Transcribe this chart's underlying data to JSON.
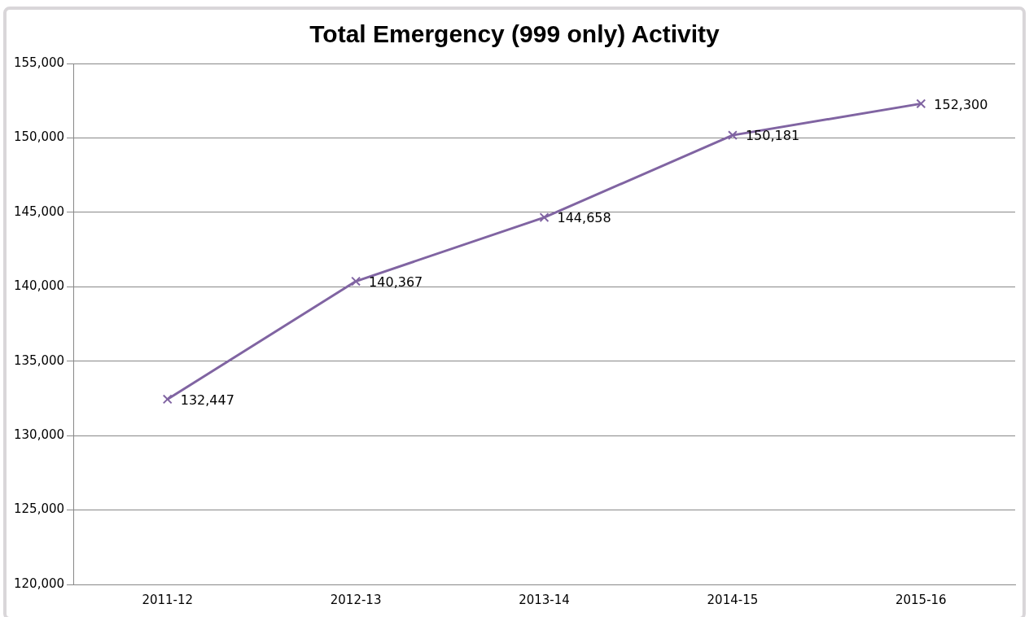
{
  "chart_data": {
    "type": "line",
    "title": "Total Emergency (999 only) Activity",
    "categories": [
      "2011-12",
      "2012-13",
      "2013-14",
      "2014-15",
      "2015-16"
    ],
    "series": [
      {
        "color": "#8064a2",
        "values": [
          132447,
          140367,
          144658,
          150181,
          152300
        ],
        "value_labels": [
          "132,447",
          "140,367",
          "144,658",
          "150,181",
          "152,300"
        ]
      }
    ],
    "ylim": [
      120000,
      155000
    ],
    "yticks": [
      {
        "value": 120000,
        "label": "120,000"
      },
      {
        "value": 125000,
        "label": "125,000"
      },
      {
        "value": 130000,
        "label": "130,000"
      },
      {
        "value": 135000,
        "label": "135,000"
      },
      {
        "value": 140000,
        "label": "140,000"
      },
      {
        "value": 145000,
        "label": "145,000"
      },
      {
        "value": 150000,
        "label": "150,000"
      },
      {
        "value": 155000,
        "label": "155,000"
      }
    ],
    "grid": "y",
    "legend": false,
    "marker": "cross",
    "line_style": "solid"
  }
}
